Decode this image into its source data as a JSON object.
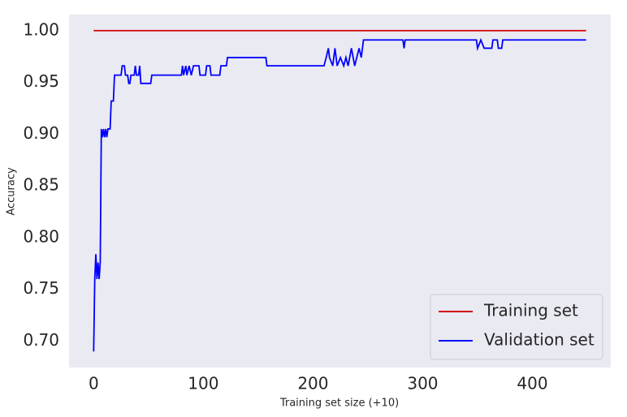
{
  "chart_data": {
    "type": "line",
    "xlabel": "Training set size (+10)",
    "ylabel": "Accuracy",
    "xlim": [
      -22.45,
      471.45
    ],
    "ylim": [
      0.6745,
      1.0155
    ],
    "xticks": [
      0,
      100,
      200,
      300,
      400
    ],
    "yticks": [
      {
        "value": 0.7,
        "label": "0.70"
      },
      {
        "value": 0.75,
        "label": "0.75"
      },
      {
        "value": 0.8,
        "label": "0.80"
      },
      {
        "value": 0.85,
        "label": "0.85"
      },
      {
        "value": 0.9,
        "label": "0.90"
      },
      {
        "value": 0.95,
        "label": "0.95"
      },
      {
        "value": 1.0,
        "label": "1.00"
      }
    ],
    "grid": false,
    "legend": "lower right",
    "series": [
      {
        "name": "Training set",
        "color": "#d40000",
        "x": [
          0,
          449
        ],
        "values": [
          1.0,
          1.0
        ]
      },
      {
        "name": "Validation set",
        "color": "#0000ff",
        "x": [
          0,
          1,
          2,
          3,
          4,
          5,
          6,
          7,
          8,
          9,
          10,
          11,
          12,
          13,
          15,
          16,
          18,
          19,
          25,
          26,
          28,
          29,
          31,
          32,
          33,
          34,
          37,
          38,
          39,
          41,
          42,
          43,
          52,
          53,
          80,
          81,
          82,
          84,
          85,
          87,
          89,
          91,
          96,
          97,
          102,
          103,
          106,
          107,
          115,
          116,
          121,
          122,
          157,
          158,
          210,
          212,
          214,
          215,
          218,
          220,
          222,
          225,
          228,
          230,
          232,
          235,
          238,
          242,
          244,
          246,
          282,
          283,
          284,
          349,
          350,
          353,
          356,
          363,
          364,
          368,
          369,
          372,
          373,
          449
        ],
        "values": [
          0.69,
          0.76,
          0.784,
          0.76,
          0.776,
          0.76,
          0.776,
          0.905,
          0.897,
          0.905,
          0.897,
          0.905,
          0.897,
          0.905,
          0.905,
          0.932,
          0.932,
          0.957,
          0.957,
          0.966,
          0.966,
          0.957,
          0.957,
          0.949,
          0.949,
          0.957,
          0.957,
          0.966,
          0.957,
          0.957,
          0.966,
          0.949,
          0.949,
          0.957,
          0.957,
          0.966,
          0.957,
          0.966,
          0.957,
          0.966,
          0.957,
          0.966,
          0.966,
          0.957,
          0.957,
          0.966,
          0.966,
          0.957,
          0.957,
          0.966,
          0.966,
          0.974,
          0.974,
          0.966,
          0.966,
          0.974,
          0.983,
          0.974,
          0.966,
          0.983,
          0.966,
          0.974,
          0.966,
          0.974,
          0.966,
          0.983,
          0.966,
          0.983,
          0.974,
          0.991,
          0.991,
          0.983,
          0.991,
          0.991,
          0.983,
          0.991,
          0.983,
          0.983,
          0.991,
          0.991,
          0.983,
          0.983,
          0.991,
          0.991
        ]
      }
    ]
  }
}
